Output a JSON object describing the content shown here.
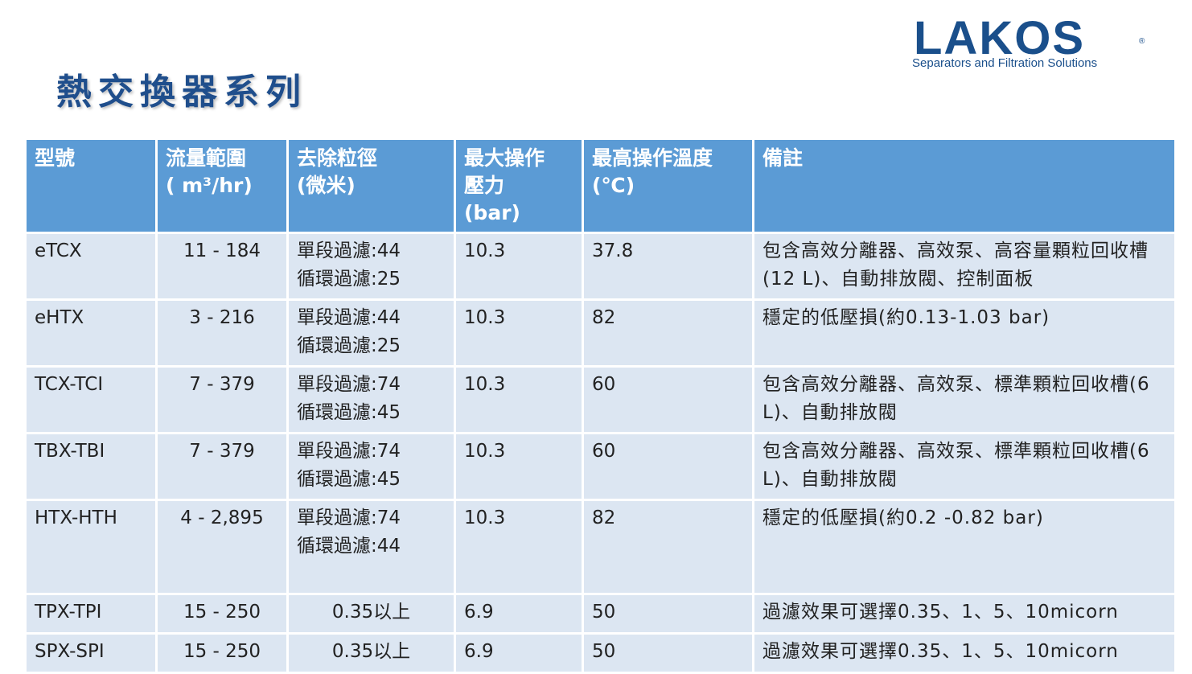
{
  "title": "熱交換器系列",
  "logo": {
    "brand": "LAKOS",
    "registered": "®",
    "tagline": "Separators and Filtration Solutions"
  },
  "colors": {
    "header_bg": "#5b9bd5",
    "row_bg": "#dce6f2",
    "title": "#1f4e8c",
    "brand": "#1a4f8b"
  },
  "table": {
    "headers": [
      {
        "line1": "型號",
        "line2": "",
        "line3": ""
      },
      {
        "line1": "流量範圍",
        "line2": "( m³/hr)",
        "line3": ""
      },
      {
        "line1": "去除粒徑",
        "line2": "(微米)",
        "line3": ""
      },
      {
        "line1": "最大操作",
        "line2": "壓力",
        "line3": "(bar)"
      },
      {
        "line1": "最高操作溫度",
        "line2": "(℃)",
        "line3": ""
      },
      {
        "line1": "備註",
        "line2": "",
        "line3": ""
      }
    ],
    "rows": [
      {
        "model": "eTCX",
        "flow": "11 - 184",
        "particle1": "單段過濾:44",
        "particle2": "循環過濾:25",
        "pressure": "10.3",
        "temp": "37.8",
        "note": "包含高效分離器、高效泵、高容量顆粒回收槽(12 L)、自動排放閥、控制面板"
      },
      {
        "model": "eHTX",
        "flow": "3 - 216",
        "particle1": "單段過濾:44",
        "particle2": "循環過濾:25",
        "pressure": "10.3",
        "temp": "82",
        "note": "穩定的低壓損(約0.13-1.03 bar)"
      },
      {
        "model": "TCX-TCI",
        "flow": "7 - 379",
        "particle1": "單段過濾:74",
        "particle2": "循環過濾:45",
        "pressure": "10.3",
        "temp": "60",
        "note": "包含高效分離器、高效泵、標準顆粒回收槽(6 L)、自動排放閥"
      },
      {
        "model": "TBX-TBI",
        "flow": "7 - 379",
        "particle1": "單段過濾:74",
        "particle2": "循環過濾:45",
        "pressure": "10.3",
        "temp": "60",
        "note": "包含高效分離器、高效泵、標準顆粒回收槽(6 L)、自動排放閥"
      },
      {
        "model": "HTX-HTH",
        "flow": "4 - 2,895",
        "particle1": "單段過濾:74",
        "particle2": "循環過濾:44",
        "pressure": "10.3",
        "temp": "82",
        "note": "穩定的低壓損(約0.2 -0.82 bar)"
      },
      {
        "model": "TPX-TPI",
        "flow": "15 - 250",
        "particle1": "0.35以上",
        "particle2": "",
        "pressure": "6.9",
        "temp": "50",
        "note": "過濾效果可選擇0.35、1、5、10micorn"
      },
      {
        "model": "SPX-SPI",
        "flow": "15 - 250",
        "particle1": "0.35以上",
        "particle2": "",
        "pressure": "6.9",
        "temp": "50",
        "note": "過濾效果可選擇0.35、1、5、10micorn"
      }
    ]
  }
}
